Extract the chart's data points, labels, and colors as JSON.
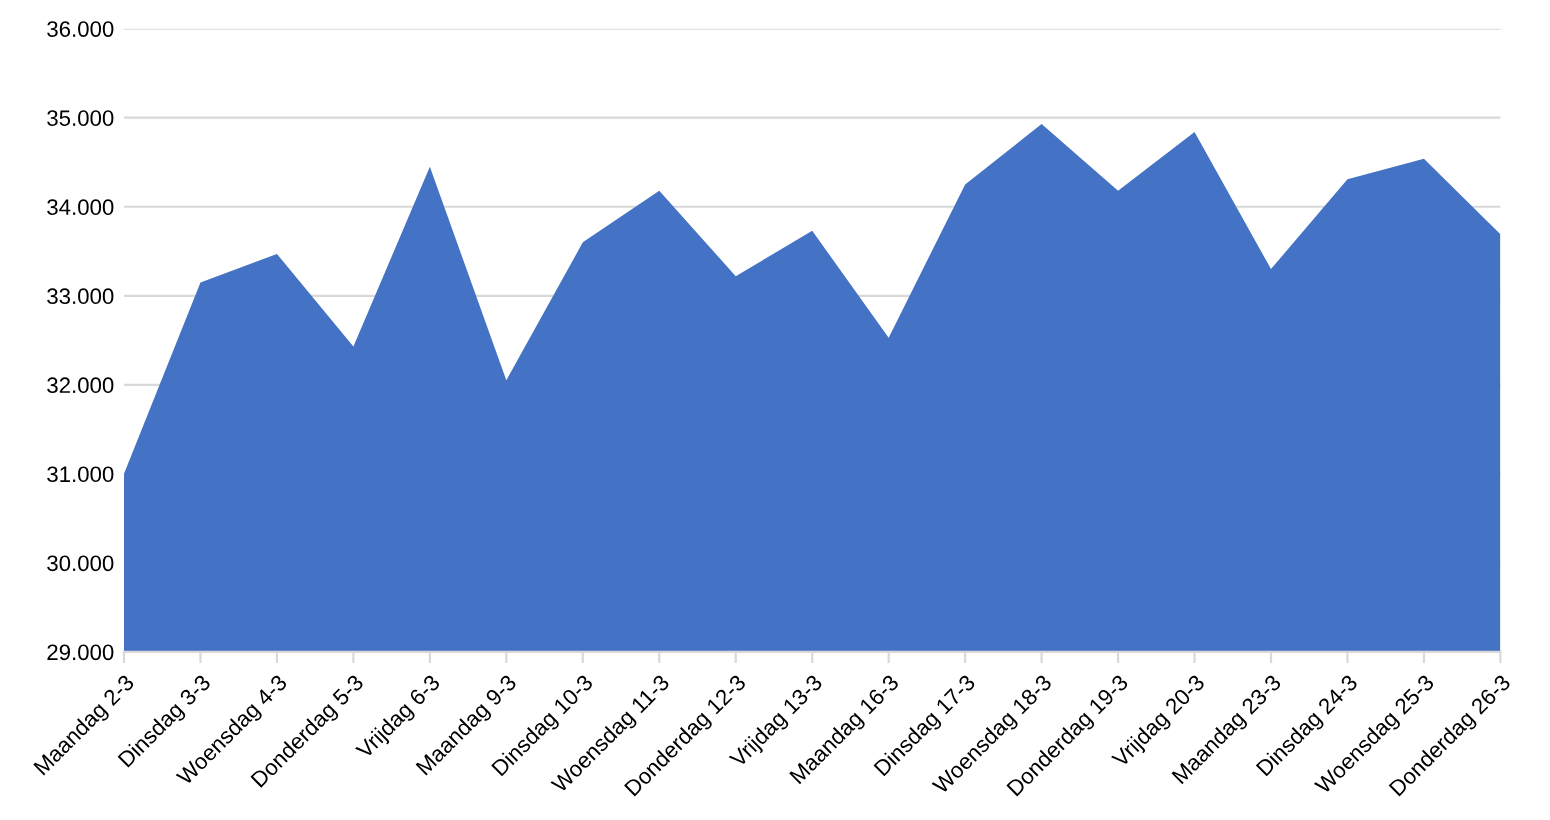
{
  "chart_data": {
    "type": "area",
    "categories": [
      "Maandag 2-3",
      "Dinsdag 3-3",
      "Woensdag 4-3",
      "Donderdag 5-3",
      "Vrijdag 6-3",
      "Maandag 9-3",
      "Dinsdag 10-3",
      "Woensdag 11-3",
      "Donderdag 12-3",
      "Vrijdag 13-3",
      "Maandag 16-3",
      "Dinsdag 17-3",
      "Woensdag 18-3",
      "Donderdag 19-3",
      "Vrijdag 20-3",
      "Maandag 23-3",
      "Dinsdag 24-3",
      "Woensdag 25-3",
      "Donderdag 26-3"
    ],
    "values": [
      31000,
      33150,
      33470,
      32430,
      34450,
      32050,
      33600,
      34180,
      33220,
      33730,
      32530,
      34250,
      34930,
      34180,
      34840,
      33300,
      34310,
      34540,
      33690
    ],
    "color": "#4472c4",
    "ylim": [
      29000,
      36000
    ],
    "yticks": [
      {
        "value": 29000,
        "label": "29.000"
      },
      {
        "value": 30000,
        "label": "30.000"
      },
      {
        "value": 31000,
        "label": "31.000"
      },
      {
        "value": 32000,
        "label": "32.000"
      },
      {
        "value": 33000,
        "label": "33.000"
      },
      {
        "value": 34000,
        "label": "34.000"
      },
      {
        "value": 35000,
        "label": "35.000"
      },
      {
        "value": 36000,
        "label": "36.000"
      }
    ],
    "grid": "y"
  }
}
